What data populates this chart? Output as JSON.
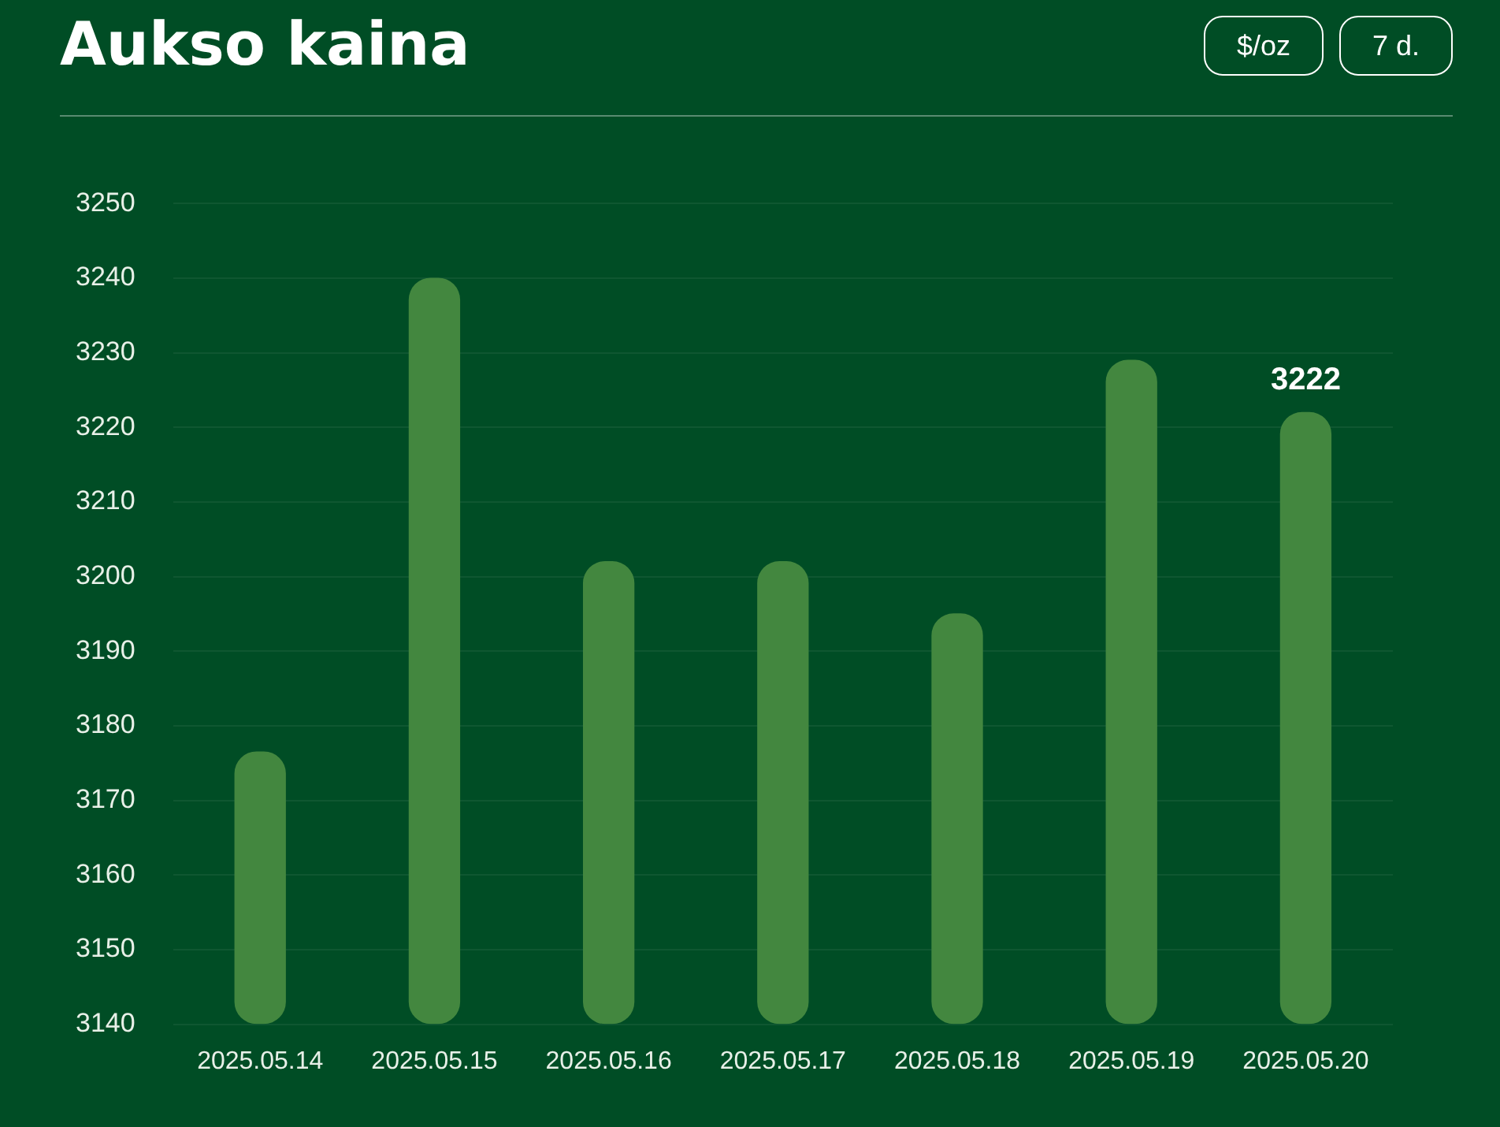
{
  "chart_data": {
    "type": "bar",
    "title": "Aukso kaina",
    "annotations": [
      "$/oz",
      "7 d."
    ],
    "categories": [
      "2025.05.14",
      "2025.05.15",
      "2025.05.16",
      "2025.05.17",
      "2025.05.18",
      "2025.05.19",
      "2025.05.20"
    ],
    "values": [
      3176.5,
      3240,
      3202,
      3202,
      3195,
      3229,
      3222
    ],
    "value_labels": [
      null,
      null,
      null,
      null,
      null,
      null,
      "3222"
    ],
    "color": "#43873f",
    "ylim": [
      3140,
      3250
    ],
    "yticks": [
      3140,
      3150,
      3160,
      3170,
      3180,
      3190,
      3200,
      3210,
      3220,
      3230,
      3240,
      3250
    ],
    "grid": "y",
    "legend": false
  }
}
